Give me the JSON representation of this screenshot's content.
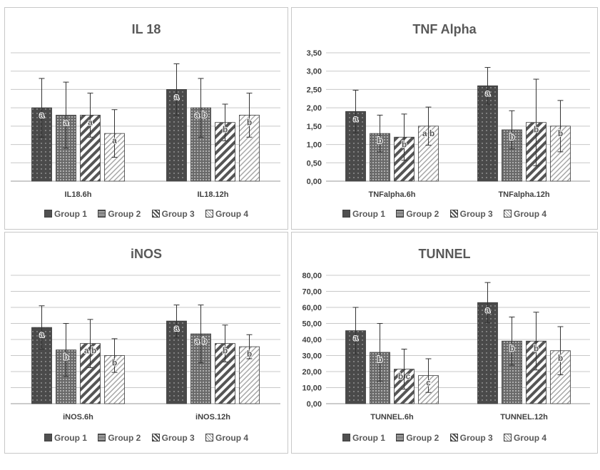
{
  "legend": [
    "Group 1",
    "Group 2",
    "Group 3",
    "Group 4"
  ],
  "chart_data": [
    {
      "type": "bar",
      "title": "IL 18",
      "categories": [
        "IL18.6h",
        "IL18.12h"
      ],
      "ylim": [
        0,
        3.5
      ],
      "yticks": [],
      "series": [
        {
          "name": "Group 1",
          "values": [
            2.0,
            2.5
          ],
          "errors": [
            0.8,
            0.7
          ],
          "labels": [
            "a",
            "a"
          ]
        },
        {
          "name": "Group 2",
          "values": [
            1.8,
            2.0
          ],
          "errors": [
            0.9,
            0.8
          ],
          "labels": [
            "a",
            "a b"
          ]
        },
        {
          "name": "Group 3",
          "values": [
            1.8,
            1.6
          ],
          "errors": [
            0.6,
            0.5
          ],
          "labels": [
            "a",
            "b"
          ]
        },
        {
          "name": "Group 4",
          "values": [
            1.3,
            1.8
          ],
          "errors": [
            0.65,
            0.6
          ],
          "labels": [
            "a",
            "b"
          ]
        }
      ],
      "grid": true,
      "legend_position": "bottom"
    },
    {
      "type": "bar",
      "title": "TNF Alpha",
      "categories": [
        "TNFalpha.6h",
        "TNFalpha.12h"
      ],
      "ylim": [
        0,
        3.5
      ],
      "yticks": [
        "0,00",
        "0,50",
        "1,00",
        "1,50",
        "2,00",
        "2,50",
        "3,00",
        "3,50"
      ],
      "series": [
        {
          "name": "Group 1",
          "values": [
            1.9,
            2.6
          ],
          "errors": [
            0.58,
            0.5
          ],
          "labels": [
            "a",
            "a"
          ]
        },
        {
          "name": "Group 2",
          "values": [
            1.3,
            1.4
          ],
          "errors": [
            0.5,
            0.52
          ],
          "labels": [
            "b",
            "b"
          ]
        },
        {
          "name": "Group 3",
          "values": [
            1.2,
            1.6
          ],
          "errors": [
            0.63,
            1.18
          ],
          "labels": [
            "b",
            "b"
          ]
        },
        {
          "name": "Group 4",
          "values": [
            1.5,
            1.5
          ],
          "errors": [
            0.52,
            0.7
          ],
          "labels": [
            "a b",
            "b"
          ]
        }
      ],
      "grid": true,
      "legend_position": "bottom"
    },
    {
      "type": "bar",
      "title": "iNOS",
      "categories": [
        "iNOS.6h",
        "iNOS.12h"
      ],
      "ylim": [
        0,
        80
      ],
      "yticks": [],
      "series": [
        {
          "name": "Group 1",
          "values": [
            47.5,
            51.5
          ],
          "errors": [
            13.5,
            10.0
          ],
          "labels": [
            "a",
            "a"
          ]
        },
        {
          "name": "Group 2",
          "values": [
            33.5,
            43.5
          ],
          "errors": [
            16.5,
            18.0
          ],
          "labels": [
            "b",
            "a b"
          ]
        },
        {
          "name": "Group 3",
          "values": [
            37.5,
            37.5
          ],
          "errors": [
            15.0,
            11.5
          ],
          "labels": [
            "a b",
            "b"
          ]
        },
        {
          "name": "Group 4",
          "values": [
            30.0,
            35.5
          ],
          "errors": [
            10.5,
            7.5
          ],
          "labels": [
            "b",
            "b"
          ]
        }
      ],
      "grid": true,
      "legend_position": "bottom"
    },
    {
      "type": "bar",
      "title": "TUNNEL",
      "categories": [
        "TUNNEL.6h",
        "TUNNEL.12h"
      ],
      "ylim": [
        0,
        80
      ],
      "yticks": [
        "0,00",
        "10,00",
        "20,00",
        "30,00",
        "40,00",
        "50,00",
        "60,00",
        "70,00",
        "80,00"
      ],
      "series": [
        {
          "name": "Group 1",
          "values": [
            45.5,
            63.0
          ],
          "errors": [
            14.5,
            12.5
          ],
          "labels": [
            "a",
            "a"
          ]
        },
        {
          "name": "Group 2",
          "values": [
            32.0,
            39.0
          ],
          "errors": [
            18.0,
            15.0
          ],
          "labels": [
            "b",
            "b"
          ]
        },
        {
          "name": "Group 3",
          "values": [
            21.5,
            39.0
          ],
          "errors": [
            12.5,
            18.0
          ],
          "labels": [
            "b c",
            "b"
          ]
        },
        {
          "name": "Group 4",
          "values": [
            17.5,
            33.0
          ],
          "errors": [
            10.5,
            15.0
          ],
          "labels": [
            "c",
            "b"
          ]
        }
      ],
      "grid": true,
      "legend_position": "bottom"
    }
  ]
}
